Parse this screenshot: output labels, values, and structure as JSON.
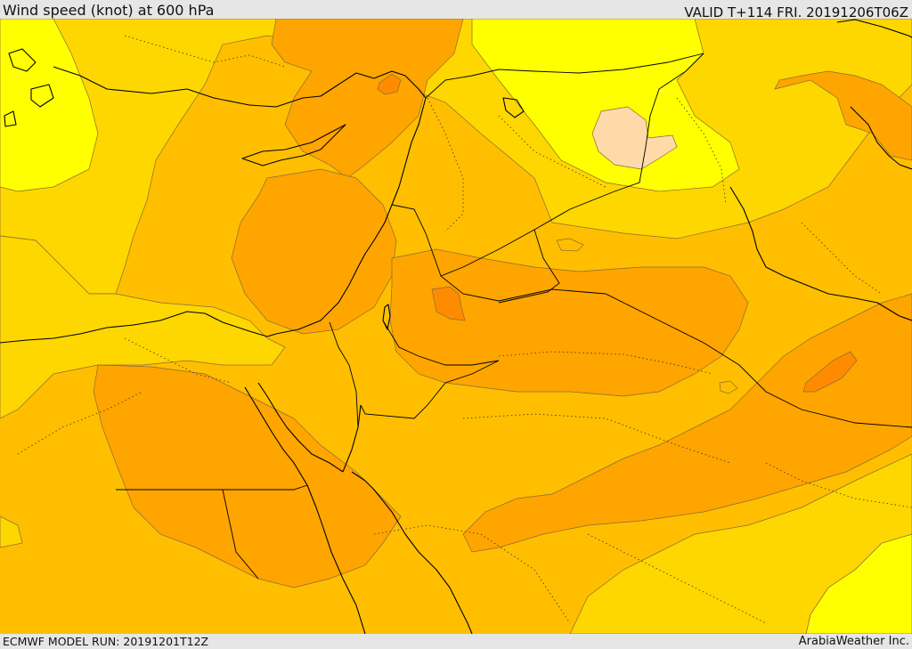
{
  "header": {
    "title": "Wind speed (knot) at 600 hPa",
    "valid": "VALID T+114 FRI. 20191206T06Z"
  },
  "footer": {
    "model_run": "ECMWF MODEL RUN: 20191201T12Z",
    "credit": "ArabiaWeather Inc."
  },
  "colors": {
    "speed_lowest": "#ffffff00",
    "speed_very_low": "#ffff00",
    "speed_low": "#ffd700",
    "speed_mid": "#ffbf00",
    "speed_high": "#ffa500",
    "speed_higher": "#ff8c00",
    "speed_peach": "#ffdaa8",
    "coastline": "#000000",
    "border": "#000000",
    "contour": "#8a6a3a",
    "background": "#e6e6e6"
  }
}
